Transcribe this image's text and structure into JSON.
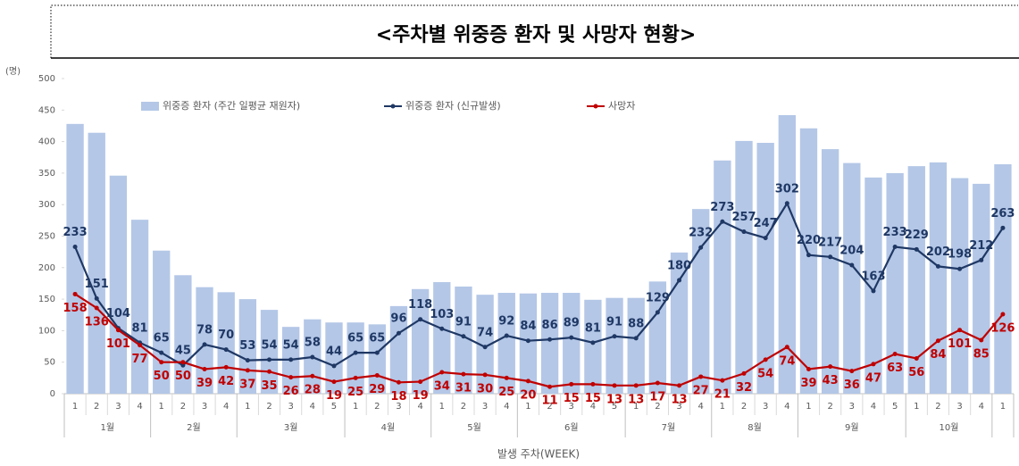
{
  "chart_data": {
    "type": "bar-line",
    "title": "<주차별 위중증 환자 및 사망자 현황>",
    "y_unit": "(명)",
    "xlabel": "발생 주차(WEEK)",
    "groups": [
      {
        "label": "1월",
        "weeks": [
          "1",
          "2",
          "3",
          "4"
        ]
      },
      {
        "label": "2월",
        "weeks": [
          "1",
          "2",
          "3",
          "4"
        ]
      },
      {
        "label": "3월",
        "weeks": [
          "1",
          "2",
          "3",
          "4",
          "5"
        ]
      },
      {
        "label": "4월",
        "weeks": [
          "1",
          "2",
          "3",
          "4"
        ]
      },
      {
        "label": "5월",
        "weeks": [
          "1",
          "2",
          "3",
          "4"
        ]
      },
      {
        "label": "6월",
        "weeks": [
          "1",
          "2",
          "3",
          "4",
          "5"
        ]
      },
      {
        "label": "7월",
        "weeks": [
          "1",
          "2",
          "3",
          "4"
        ]
      },
      {
        "label": "8월",
        "weeks": [
          "1",
          "2",
          "3",
          "4"
        ]
      },
      {
        "label": "9월",
        "weeks": [
          "1",
          "2",
          "3",
          "4",
          "5"
        ]
      },
      {
        "label": "10월",
        "weeks": [
          "1",
          "2",
          "3",
          "4"
        ]
      },
      {
        "label": null,
        "weeks": [
          "1"
        ]
      }
    ],
    "ylim": [
      0,
      500
    ],
    "yticks": [
      0,
      50,
      100,
      150,
      200,
      250,
      300,
      350,
      400,
      450,
      500
    ],
    "series": [
      {
        "name": "위중증 환자 (주간 일평균 재원자)",
        "kind": "bar",
        "color": "#b4c7e7",
        "values": [
          428,
          414,
          346,
          276,
          227,
          188,
          169,
          161,
          150,
          133,
          106,
          118,
          113,
          113,
          110,
          139,
          166,
          177,
          170,
          157,
          160,
          159,
          160,
          160,
          149,
          152,
          152,
          178,
          224,
          293,
          370,
          401,
          398,
          442,
          421,
          388,
          366,
          343,
          350,
          361,
          367,
          342,
          333,
          364
        ]
      },
      {
        "name": "위중증 환자 (신규발생)",
        "kind": "line",
        "color": "#1f3864",
        "values": [
          233,
          151,
          104,
          81,
          65,
          45,
          78,
          70,
          53,
          54,
          54,
          58,
          44,
          65,
          65,
          96,
          118,
          103,
          91,
          74,
          92,
          84,
          86,
          89,
          81,
          91,
          88,
          129,
          180,
          232,
          273,
          257,
          247,
          302,
          220,
          217,
          204,
          163,
          233,
          229,
          202,
          198,
          212,
          263
        ]
      },
      {
        "name": "사망자",
        "kind": "line",
        "color": "#c00000",
        "values": [
          158,
          136,
          101,
          77,
          50,
          50,
          39,
          42,
          37,
          35,
          26,
          28,
          19,
          25,
          29,
          18,
          19,
          34,
          31,
          30,
          25,
          20,
          11,
          15,
          15,
          13,
          13,
          17,
          13,
          27,
          21,
          32,
          54,
          74,
          39,
          43,
          36,
          47,
          63,
          56,
          84,
          101,
          85,
          126
        ]
      }
    ]
  }
}
